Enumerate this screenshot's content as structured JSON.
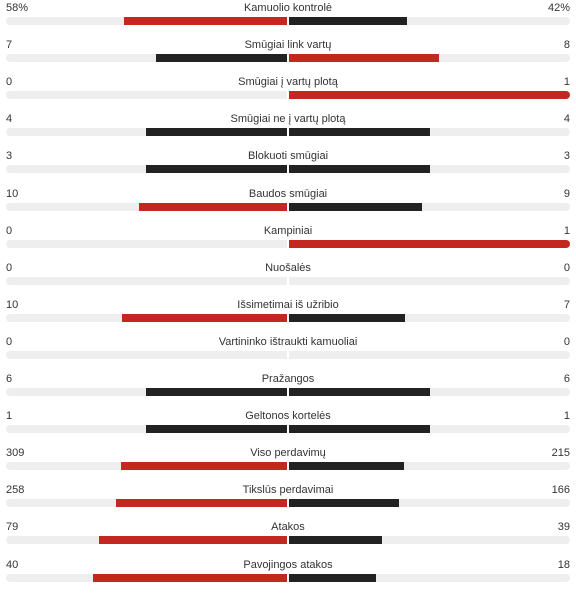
{
  "colors": {
    "leader": "#c2281f",
    "trailer": "#222222",
    "track": "#eeeeee"
  },
  "stats": [
    {
      "label": "Kamuolio kontrolė",
      "home": "58%",
      "away": "42%",
      "home_share": 0.58,
      "away_share": 0.42
    },
    {
      "label": "Smūgiai link vartų",
      "home": "7",
      "away": "8",
      "home_share": 0.467,
      "away_share": 0.533
    },
    {
      "label": "Smūgiai į vartų plotą",
      "home": "0",
      "away": "1",
      "home_share": 0,
      "away_share": 1
    },
    {
      "label": "Smūgiai ne į vartų plotą",
      "home": "4",
      "away": "4",
      "home_share": 0.5,
      "away_share": 0.5
    },
    {
      "label": "Blokuoti smūgiai",
      "home": "3",
      "away": "3",
      "home_share": 0.5,
      "away_share": 0.5
    },
    {
      "label": "Baudos smūgiai",
      "home": "10",
      "away": "9",
      "home_share": 0.526,
      "away_share": 0.474
    },
    {
      "label": "Kampiniai",
      "home": "0",
      "away": "1",
      "home_share": 0,
      "away_share": 1
    },
    {
      "label": "Nuošalės",
      "home": "0",
      "away": "0",
      "home_share": 0,
      "away_share": 0
    },
    {
      "label": "Išsimetimai iš užribio",
      "home": "10",
      "away": "7",
      "home_share": 0.588,
      "away_share": 0.412
    },
    {
      "label": "Vartininko ištraukti kamuoliai",
      "home": "0",
      "away": "0",
      "home_share": 0,
      "away_share": 0
    },
    {
      "label": "Pražangos",
      "home": "6",
      "away": "6",
      "home_share": 0.5,
      "away_share": 0.5
    },
    {
      "label": "Geltonos kortelės",
      "home": "1",
      "away": "1",
      "home_share": 0.5,
      "away_share": 0.5
    },
    {
      "label": "Viso perdavimų",
      "home": "309",
      "away": "215",
      "home_share": 0.59,
      "away_share": 0.41
    },
    {
      "label": "Tikslūs perdavimai",
      "home": "258",
      "away": "166",
      "home_share": 0.608,
      "away_share": 0.392
    },
    {
      "label": "Atakos",
      "home": "79",
      "away": "39",
      "home_share": 0.669,
      "away_share": 0.331
    },
    {
      "label": "Pavojingos atakos",
      "home": "40",
      "away": "18",
      "home_share": 0.69,
      "away_share": 0.31
    }
  ]
}
